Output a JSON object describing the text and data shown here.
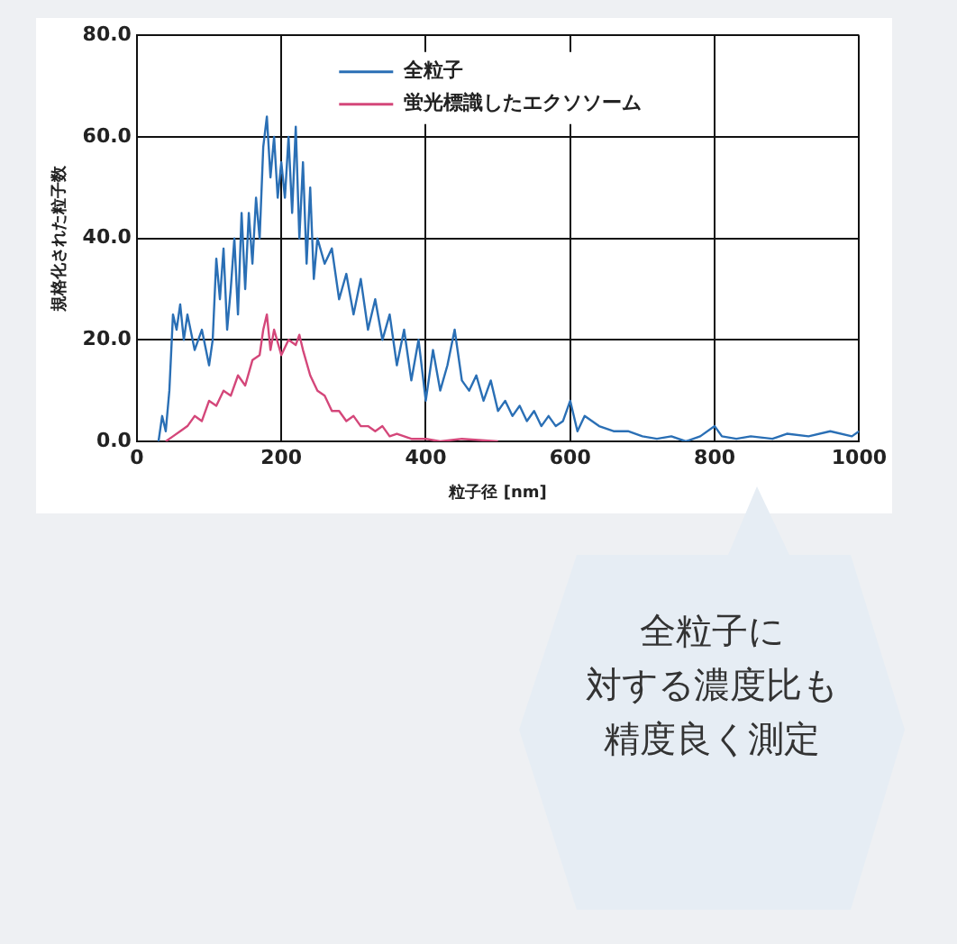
{
  "chart_data": {
    "type": "line",
    "xlabel": "粒子径 [nm]",
    "ylabel": "規格化された粒子数",
    "xlim": [
      0,
      1000
    ],
    "xticks": [
      0,
      200,
      400,
      600,
      800,
      1000
    ],
    "ylim": [
      0,
      80
    ],
    "yticks": [
      {
        "value": 0,
        "label": "0.0"
      },
      {
        "value": 20,
        "label": "20.0"
      },
      {
        "value": 40,
        "label": "40.0"
      },
      {
        "value": 60,
        "label": "60.0"
      },
      {
        "value": 80,
        "label": "80.0"
      }
    ],
    "grid": true,
    "legend": "top",
    "marker": "none",
    "line_style": "solid",
    "annotations": [
      "全粒子に",
      "対する濃度比も",
      "精度良く測定"
    ],
    "series": [
      {
        "name": "全粒子",
        "color": "#2a6fb5",
        "x": [
          30,
          35,
          40,
          45,
          50,
          55,
          60,
          65,
          70,
          80,
          90,
          100,
          105,
          110,
          115,
          120,
          125,
          130,
          135,
          140,
          145,
          150,
          155,
          160,
          165,
          170,
          175,
          180,
          185,
          190,
          195,
          200,
          205,
          210,
          215,
          220,
          225,
          230,
          235,
          240,
          245,
          250,
          260,
          270,
          280,
          290,
          300,
          310,
          320,
          330,
          340,
          350,
          360,
          370,
          380,
          390,
          400,
          410,
          420,
          430,
          440,
          450,
          460,
          470,
          480,
          490,
          500,
          510,
          520,
          530,
          540,
          550,
          560,
          570,
          580,
          590,
          600,
          610,
          620,
          640,
          660,
          680,
          700,
          720,
          740,
          760,
          780,
          800,
          810,
          830,
          850,
          880,
          900,
          930,
          960,
          990,
          1000
        ],
        "values": [
          0,
          5,
          2,
          10,
          25,
          22,
          27,
          20,
          25,
          18,
          22,
          15,
          20,
          36,
          28,
          38,
          22,
          30,
          40,
          25,
          45,
          30,
          45,
          35,
          48,
          40,
          58,
          64,
          52,
          60,
          48,
          55,
          48,
          60,
          45,
          62,
          40,
          55,
          35,
          50,
          32,
          40,
          35,
          38,
          28,
          33,
          25,
          32,
          22,
          28,
          20,
          25,
          15,
          22,
          12,
          20,
          8,
          18,
          10,
          15,
          22,
          12,
          10,
          13,
          8,
          12,
          6,
          8,
          5,
          7,
          4,
          6,
          3,
          5,
          3,
          4,
          8,
          2,
          5,
          3,
          2,
          2,
          1,
          0.5,
          1,
          0,
          1,
          3,
          1,
          0.5,
          1,
          0.5,
          1.5,
          1,
          2,
          1,
          2
        ]
      },
      {
        "name": "蛍光標識したエクソソーム",
        "color": "#d4477a",
        "x": [
          40,
          50,
          60,
          70,
          80,
          90,
          100,
          110,
          120,
          130,
          140,
          150,
          160,
          170,
          175,
          180,
          185,
          190,
          200,
          210,
          220,
          225,
          230,
          240,
          250,
          260,
          270,
          280,
          290,
          300,
          310,
          320,
          330,
          340,
          350,
          360,
          380,
          400,
          420,
          450,
          500
        ],
        "values": [
          0,
          1,
          2,
          3,
          5,
          4,
          8,
          7,
          10,
          9,
          13,
          11,
          16,
          17,
          22,
          25,
          18,
          22,
          17,
          20,
          19,
          21,
          18,
          13,
          10,
          9,
          6,
          6,
          4,
          5,
          3,
          3,
          2,
          3,
          1,
          1.5,
          0.5,
          0.5,
          0,
          0.5,
          0
        ]
      }
    ]
  }
}
